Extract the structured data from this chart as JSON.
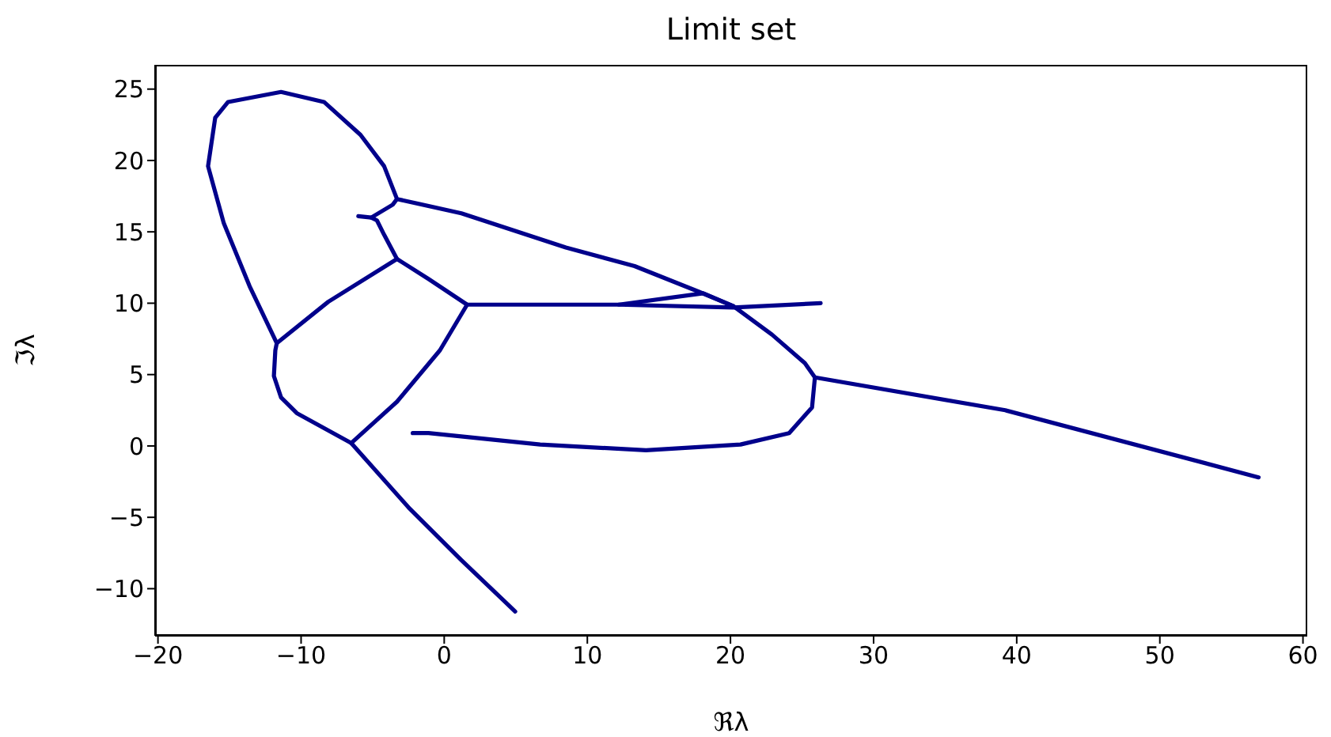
{
  "chart_data": {
    "type": "line",
    "title": "Limit set",
    "xlabel": "ℜλ",
    "ylabel": "ℑλ",
    "xlim": [
      -20.2,
      60.3
    ],
    "ylim": [
      -13.3,
      26.7
    ],
    "xticks": [
      -20,
      -10,
      0,
      10,
      20,
      30,
      40,
      50,
      60
    ],
    "yticks": [
      -10,
      -5,
      0,
      5,
      10,
      15,
      20,
      25
    ],
    "grid": false,
    "line_style": "solid",
    "series": [
      {
        "color": "#00008b",
        "x": [
          -11.7,
          -13.6,
          -15.4,
          -16.5,
          -16.0,
          -15.1,
          -11.4,
          -8.4,
          -5.85,
          -4.2,
          -3.3,
          1.2,
          8.5,
          13.3,
          17.8,
          20.2,
          22.9,
          25.2,
          25.9,
          25.7,
          24.1,
          20.7,
          14.1,
          6.7,
          -1.1,
          -2.2
        ],
        "values": [
          7.2,
          11.2,
          15.6,
          19.6,
          23.0,
          24.1,
          24.8,
          24.1,
          21.8,
          19.6,
          17.3,
          16.3,
          13.9,
          12.6,
          10.8,
          9.8,
          7.8,
          5.8,
          4.8,
          2.7,
          0.9,
          0.1,
          -0.3,
          0.1,
          0.9,
          0.9
        ]
      },
      {
        "color": "#00008b",
        "x": [
          25.9,
          39.2,
          56.9
        ],
        "values": [
          4.8,
          2.5,
          -2.2
        ]
      },
      {
        "color": "#00008b",
        "x": [
          -11.7,
          -8.1,
          -3.3,
          -1.1,
          1.6,
          12.2,
          20.2,
          26.3
        ],
        "values": [
          7.2,
          10.1,
          13.1,
          11.7,
          9.9,
          9.9,
          9.7,
          10.0
        ]
      },
      {
        "color": "#00008b",
        "x": [
          12.2,
          18.1,
          20.2
        ],
        "values": [
          9.9,
          10.7,
          9.8
        ]
      },
      {
        "color": "#00008b",
        "x": [
          -3.3,
          -4.2,
          -4.7,
          -5.1,
          -6.0
        ],
        "values": [
          13.1,
          14.8,
          15.8,
          16.0,
          16.1
        ]
      },
      {
        "color": "#00008b",
        "x": [
          -5.1,
          -3.6,
          -3.3
        ],
        "values": [
          16.0,
          16.9,
          17.3
        ]
      },
      {
        "color": "#00008b",
        "x": [
          1.6,
          -0.3,
          -3.3,
          -6.5,
          -2.5,
          1.2,
          4.96
        ],
        "values": [
          9.9,
          6.7,
          3.1,
          0.2,
          -4.3,
          -8.0,
          -11.6
        ]
      },
      {
        "color": "#00008b",
        "x": [
          -11.7,
          -11.8,
          -11.9,
          -11.4,
          -10.3,
          -6.5
        ],
        "values": [
          7.2,
          6.7,
          4.9,
          3.4,
          2.3,
          0.2
        ]
      }
    ]
  }
}
